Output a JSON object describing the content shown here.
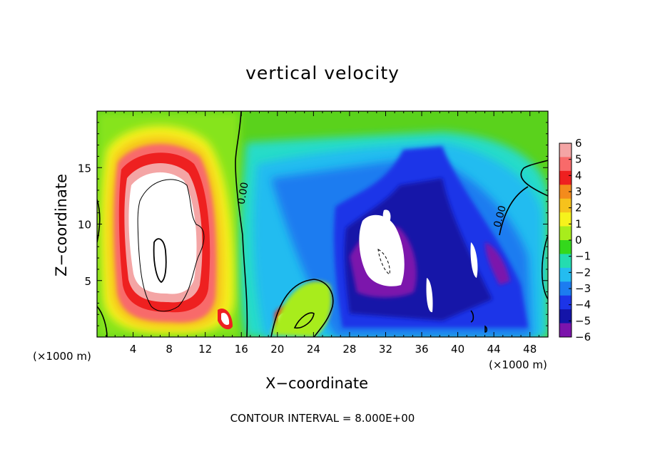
{
  "chart_data": {
    "type": "heatmap",
    "title": "vertical velocity",
    "xlabel": "X−coordinate",
    "ylabel": "Z−coordinate",
    "x_unit_left": "(×1000 m)",
    "x_unit_right": "(×1000 m)",
    "annotation": "CONTOUR INTERVAL = 8.000E+00",
    "xlim": [
      0,
      50
    ],
    "ylim": [
      0,
      20
    ],
    "x_ticks": [
      {
        "v": 4,
        "label": "4"
      },
      {
        "v": 8,
        "label": "8"
      },
      {
        "v": 12,
        "label": "12"
      },
      {
        "v": 16,
        "label": "16"
      },
      {
        "v": 20,
        "label": "20"
      },
      {
        "v": 24,
        "label": "24"
      },
      {
        "v": 28,
        "label": "28"
      },
      {
        "v": 32,
        "label": "32"
      },
      {
        "v": 36,
        "label": "36"
      },
      {
        "v": 40,
        "label": "40"
      },
      {
        "v": 44,
        "label": "44"
      },
      {
        "v": 48,
        "label": "48"
      }
    ],
    "y_ticks": [
      {
        "v": 5,
        "label": "5"
      },
      {
        "v": 10,
        "label": "10"
      },
      {
        "v": 15,
        "label": "15"
      }
    ],
    "colorbar": {
      "levels": [
        6,
        5,
        4,
        3,
        2,
        1,
        0,
        -1,
        -2,
        -3,
        -4,
        -5,
        -6
      ],
      "labels": [
        "6",
        "5",
        "4",
        "3",
        "2",
        "1",
        "0",
        "−1",
        "−2",
        "−3",
        "−4",
        "−5",
        "−6"
      ],
      "colors": [
        "#f4a5a5",
        "#f86a6a",
        "#ee2020",
        "#f38b1c",
        "#f6c21c",
        "#f6f21c",
        "#a8ec1c",
        "#34d81c",
        "#24dcb0",
        "#24bcf0",
        "#1c7cf0",
        "#1c34e8",
        "#1414a8",
        "#7c14ac"
      ]
    },
    "contour_labels": [
      "0.00",
      "0.00"
    ],
    "features": [
      {
        "name": "updraft-core",
        "x": 7,
        "z": 10,
        "w": ">6"
      },
      {
        "name": "downdraft-region",
        "x": 34,
        "z": 8,
        "w": "<-6"
      }
    ]
  }
}
